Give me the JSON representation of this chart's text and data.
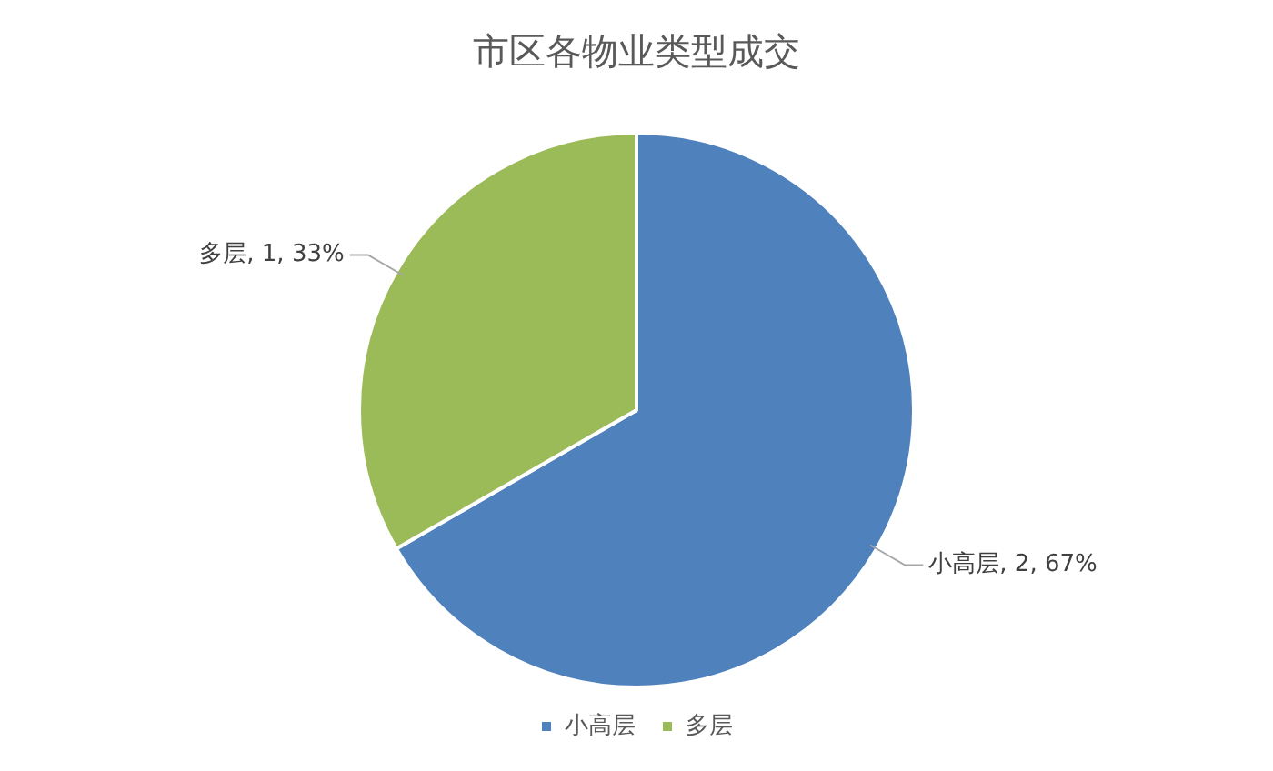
{
  "chart_data": {
    "type": "pie",
    "title": "市区各物业类型成交",
    "categories": [
      "小高层",
      "多层"
    ],
    "values": [
      2,
      1
    ],
    "colors": [
      "#4f81bd",
      "#9bbb59"
    ],
    "value_labels": [
      "小高层, 2, 67%",
      "多层, 1, 33%"
    ],
    "legend": "bottom"
  }
}
